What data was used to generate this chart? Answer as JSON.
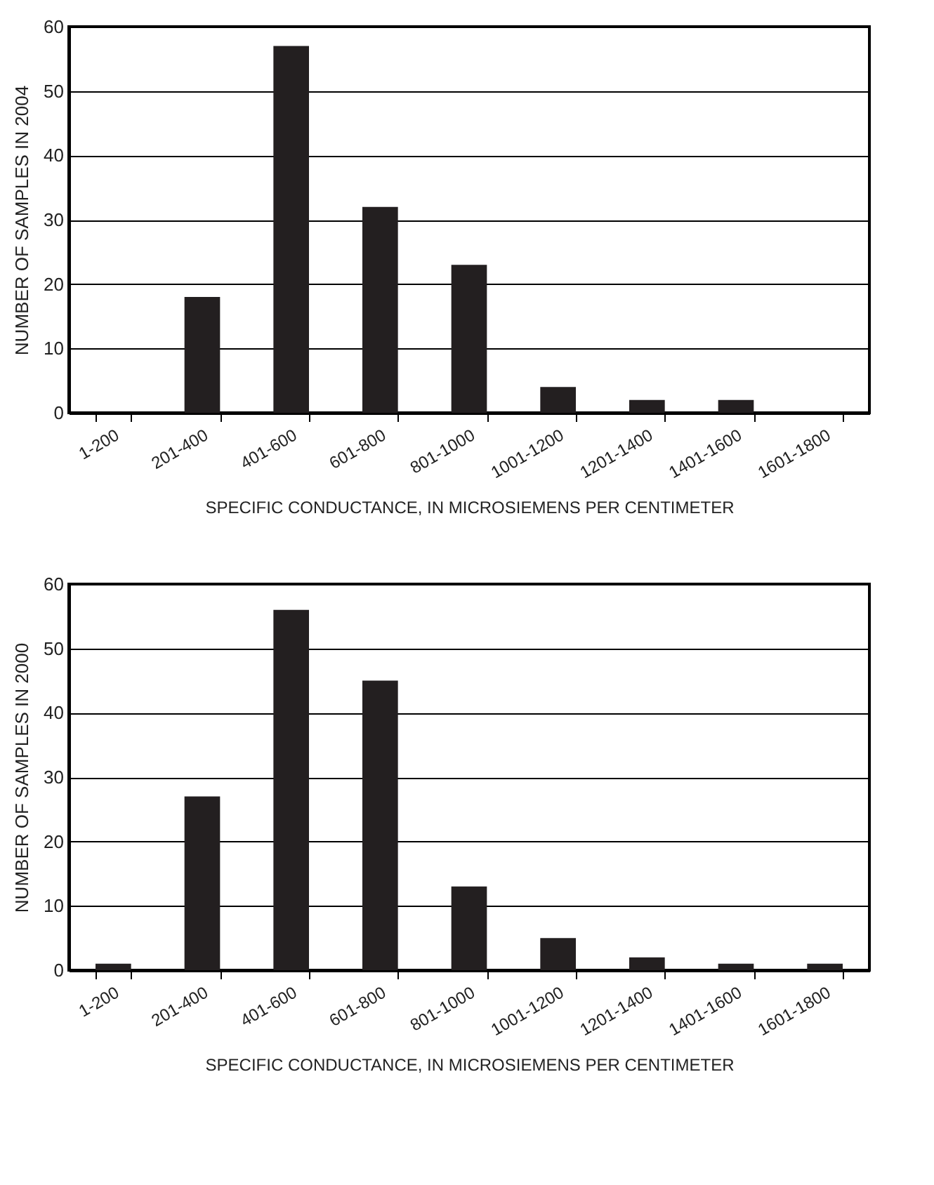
{
  "chart_data": [
    {
      "type": "bar",
      "categories": [
        "1-200",
        "201-400",
        "401-600",
        "601-800",
        "801-1000",
        "1001-1200",
        "1201-1400",
        "1401-1600",
        "1601-1800"
      ],
      "values": [
        0,
        18,
        57,
        32,
        23,
        4,
        2,
        2,
        0
      ],
      "color": "#231f20",
      "xlabel": "SPECIFIC CONDUCTANCE, IN MICROSIEMENS PER CENTIMETER",
      "ylabel": "NUMBER OF SAMPLES IN 2004",
      "ylim": [
        0,
        60
      ],
      "yticks": [
        0,
        10,
        20,
        30,
        40,
        50,
        60
      ],
      "grid": "y"
    },
    {
      "type": "bar",
      "categories": [
        "1-200",
        "201-400",
        "401-600",
        "601-800",
        "801-1000",
        "1001-1200",
        "1201-1400",
        "1401-1600",
        "1601-1800"
      ],
      "values": [
        1,
        27,
        56,
        45,
        13,
        5,
        2,
        1,
        1
      ],
      "color": "#231f20",
      "xlabel": "SPECIFIC CONDUCTANCE, IN MICROSIEMENS PER CENTIMETER",
      "ylabel": "NUMBER OF SAMPLES IN 2000",
      "ylim": [
        0,
        60
      ],
      "yticks": [
        0,
        10,
        20,
        30,
        40,
        50,
        60
      ],
      "grid": "y"
    }
  ]
}
